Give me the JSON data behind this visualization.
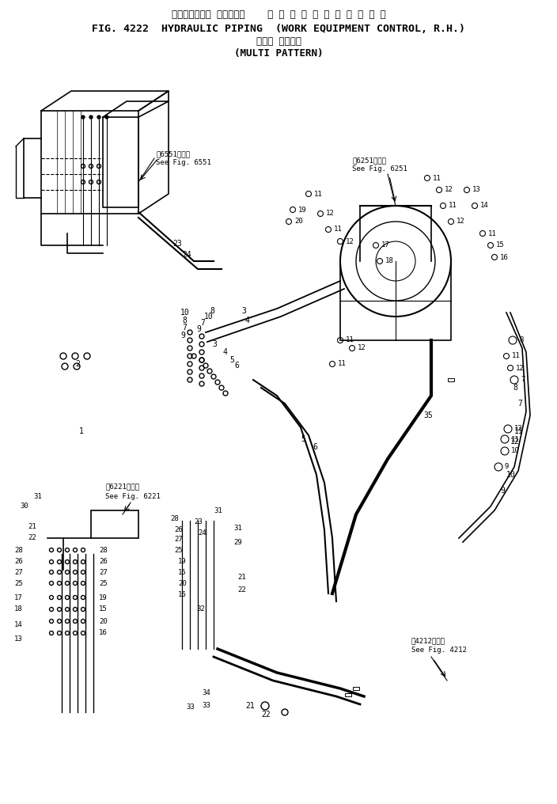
{
  "title_line1": "ハイドロリック パイピング    作 業 機 コ ン ト ロ ー ル ， 右",
  "title_line2": "FIG. 4222  HYDRAULIC PIPING  (WORK EQUIPMENT CONTROL, R.H.)",
  "title_line3": "マルチ パターン",
  "title_line4": "(MULTI PATTERN)",
  "bg_color": "#ffffff",
  "line_color": "#000000",
  "text_color": "#000000",
  "fig_width": 7.04,
  "fig_height": 10.16,
  "dpi": 100
}
